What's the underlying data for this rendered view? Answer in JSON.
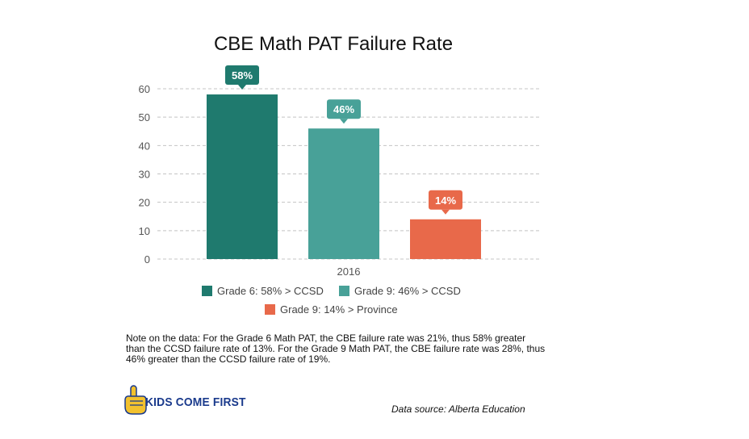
{
  "chart_data": {
    "type": "bar",
    "title": "CBE Math PAT Failure Rate",
    "categories": [
      "2016"
    ],
    "series": [
      {
        "name": "Grade 6: 58% > CCSD",
        "values": [
          58
        ],
        "label": "58%",
        "color": "#1f7a6e"
      },
      {
        "name": "Grade 9: 46% > CCSD",
        "values": [
          46
        ],
        "label": "46%",
        "color": "#48a198"
      },
      {
        "name": "Grade 9: 14% > Province",
        "values": [
          14
        ],
        "label": "14%",
        "color": "#e8694a"
      }
    ],
    "ylim": [
      0,
      60
    ],
    "yticks": [
      "0",
      "10",
      "20",
      "30",
      "40",
      "50",
      "60"
    ],
    "grid": true,
    "legend_position": "bottom"
  },
  "note": "Note on the data: For the Grade 6 Math PAT, the CBE failure rate was 21%, thus 58% greater than the CCSD failure rate of 13%.   For the Grade 9 Math PAT, the CBE failure rate was 28%, thus 46% greater than the CCSD failure rate of 19%.",
  "logo": {
    "text": "KIDS COME FIRST",
    "icon": "raised-finger-hand-icon"
  },
  "source": "Data source: Alberta Education"
}
